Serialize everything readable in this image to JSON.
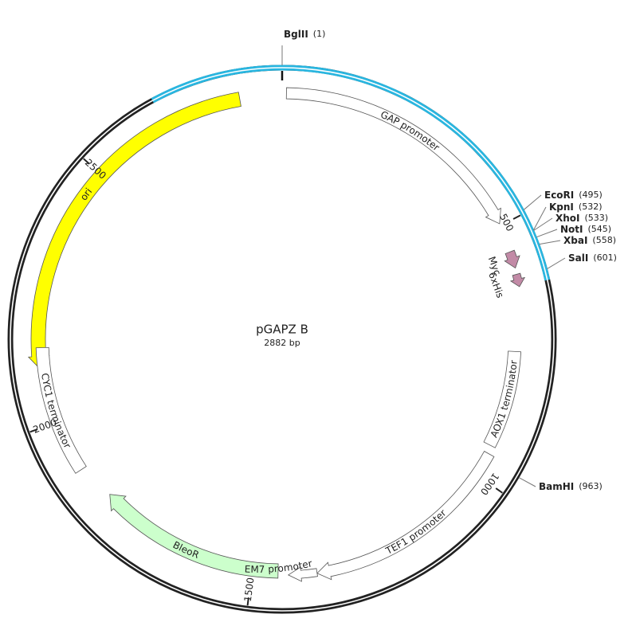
{
  "title": "pGAPZ B",
  "length": "2882 bp",
  "sites": [
    {
      "name": "BglII",
      "position": "(1)"
    },
    {
      "name": "EcoRI",
      "position": "(495)"
    },
    {
      "name": "KpnI",
      "position": "(532)"
    },
    {
      "name": "XhoI",
      "position": "(533)"
    },
    {
      "name": "NotI",
      "position": "(545)"
    },
    {
      "name": "XbaI",
      "position": "(558)"
    },
    {
      "name": "SalI",
      "position": "(601)"
    },
    {
      "name": "BamHI",
      "position": "(963)"
    }
  ],
  "ticks": [
    "500",
    "1000",
    "1500",
    "2000",
    "2500"
  ],
  "features": [
    {
      "label": "GAP promoter"
    },
    {
      "label": "ori"
    },
    {
      "label": "CYC1 terminator"
    },
    {
      "label": "BleoR"
    },
    {
      "label": "EM7 promoter"
    },
    {
      "label": "TEF1 promoter"
    },
    {
      "label": "AOX1 terminator"
    },
    {
      "label": "Myc"
    },
    {
      "label": "6xHis"
    }
  ]
}
